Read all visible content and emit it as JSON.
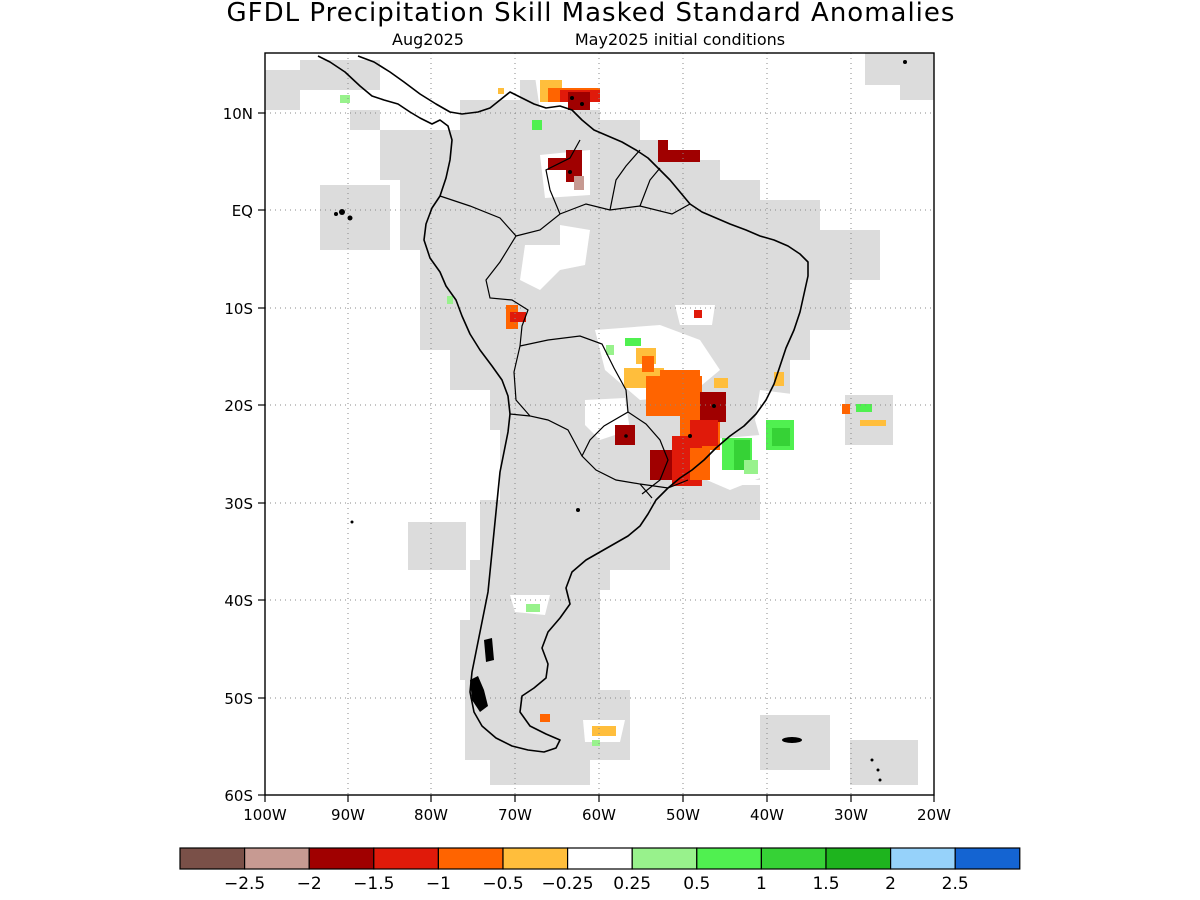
{
  "header": {
    "title": "GFDL Precipitation Skill Masked Standard Anomalies",
    "subtitle_left": "Aug2025",
    "subtitle_right": "May2025 initial conditions"
  },
  "map": {
    "region": "South America",
    "lon_range": [
      -100,
      -20
    ],
    "lat_range": [
      -60,
      16
    ],
    "grid": "dotted",
    "masked_color": "#dcdcdc",
    "land_outline_color": "#000000",
    "lon_ticks": [
      "100W",
      "90W",
      "80W",
      "70W",
      "60W",
      "50W",
      "40W",
      "30W",
      "20W"
    ],
    "lat_ticks": [
      "10N",
      "EQ",
      "10S",
      "20S",
      "30S",
      "40S",
      "50S",
      "60S"
    ],
    "anomaly_areas": [
      {
        "name": "northern Venezuela",
        "category": "-1.5 to -1"
      },
      {
        "name": "southern Venezuela",
        "category": "-2 to -1.5"
      },
      {
        "name": "French Guiana coast",
        "category": "-2 to -1.5"
      },
      {
        "name": "Peru-Bolivia border",
        "category": "-1 to -0.5"
      },
      {
        "name": "south-central Brazil",
        "category": "-1.5 to -0.5"
      },
      {
        "name": "Paraguay",
        "category": "-2 to -1.5"
      },
      {
        "name": "southeast Brazil coast",
        "category": "0.5 to 1.5"
      },
      {
        "name": "South Atlantic 20S 30W",
        "category": "0.5 to 1"
      },
      {
        "name": "Tierra del Fuego",
        "category": "-0.5 to -0.25"
      }
    ]
  },
  "colorbar": {
    "bins": [
      {
        "color": "#7a5048"
      },
      {
        "color": "#c79a92"
      },
      {
        "color": "#a00000"
      },
      {
        "color": "#e01a0a"
      },
      {
        "color": "#ff6400"
      },
      {
        "color": "#ffbe3c"
      },
      {
        "color": "#ffffff"
      },
      {
        "color": "#98f28c"
      },
      {
        "color": "#50f050"
      },
      {
        "color": "#36d236"
      },
      {
        "color": "#1eb41e"
      },
      {
        "color": "#96d2fa"
      },
      {
        "color": "#1464d2"
      }
    ],
    "labels": [
      "−2.5",
      "−2",
      "−1.5",
      "−1",
      "−0.5",
      "−0.25",
      "0.25",
      "0.5",
      "1",
      "1.5",
      "2",
      "2.5"
    ]
  }
}
